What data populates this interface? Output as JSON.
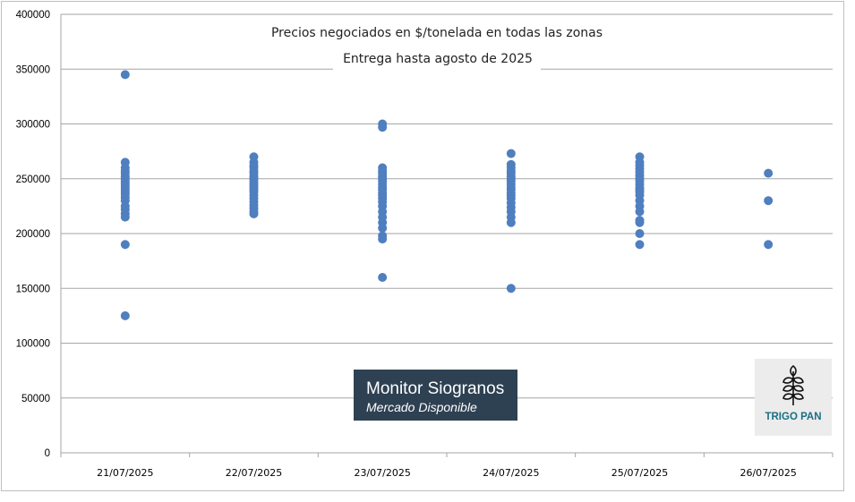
{
  "chart_data": {
    "type": "scatter",
    "title": "Precios negociados en $/tonelada en todas las zonas",
    "subtitle": "Entrega hasta agosto de 2025",
    "categories": [
      "21/07/2025",
      "22/07/2025",
      "23/07/2025",
      "24/07/2025",
      "25/07/2025",
      "26/07/2025"
    ],
    "ylim": [
      0,
      400000
    ],
    "yticks": [
      "0",
      "50000",
      "100000",
      "150000",
      "200000",
      "250000",
      "300000",
      "350000",
      "400000"
    ],
    "grid": true,
    "marker_color": "#4f7fbf",
    "series": [
      {
        "category": "21/07/2025",
        "values": [
          345000,
          265000,
          260000,
          257000,
          255000,
          252000,
          250000,
          248000,
          246000,
          244000,
          242000,
          240000,
          238000,
          236000,
          233000,
          230000,
          225000,
          222000,
          218000,
          215000,
          190000,
          125000
        ]
      },
      {
        "category": "22/07/2025",
        "values": [
          270000,
          265000,
          262000,
          260000,
          257000,
          255000,
          252000,
          250000,
          248000,
          246000,
          244000,
          242000,
          240000,
          238000,
          235000,
          232000,
          229000,
          226000,
          223000,
          220000,
          218000
        ]
      },
      {
        "category": "23/07/2025",
        "values": [
          300000,
          297000,
          260000,
          257000,
          255000,
          252000,
          250000,
          248000,
          245000,
          242000,
          240000,
          237000,
          235000,
          232000,
          229000,
          225000,
          220000,
          215000,
          210000,
          205000,
          198000,
          195000,
          160000
        ]
      },
      {
        "category": "24/07/2025",
        "values": [
          273000,
          263000,
          260000,
          257000,
          255000,
          252000,
          250000,
          248000,
          245000,
          242000,
          240000,
          237000,
          235000,
          232000,
          228000,
          224000,
          220000,
          215000,
          210000,
          150000
        ]
      },
      {
        "category": "25/07/2025",
        "values": [
          270000,
          265000,
          262000,
          259000,
          256000,
          253000,
          250000,
          248000,
          245000,
          242000,
          240000,
          238000,
          235000,
          230000,
          225000,
          220000,
          212000,
          210000,
          200000,
          190000
        ]
      },
      {
        "category": "26/07/2025",
        "values": [
          255000,
          230000,
          190000
        ]
      }
    ]
  },
  "badge": {
    "title": "Monitor Siogranos",
    "subtitle": "Mercado Disponible"
  },
  "logo": {
    "label": "TRIGO PAN",
    "icon": "wheat-icon",
    "color": "#1a6f82"
  }
}
